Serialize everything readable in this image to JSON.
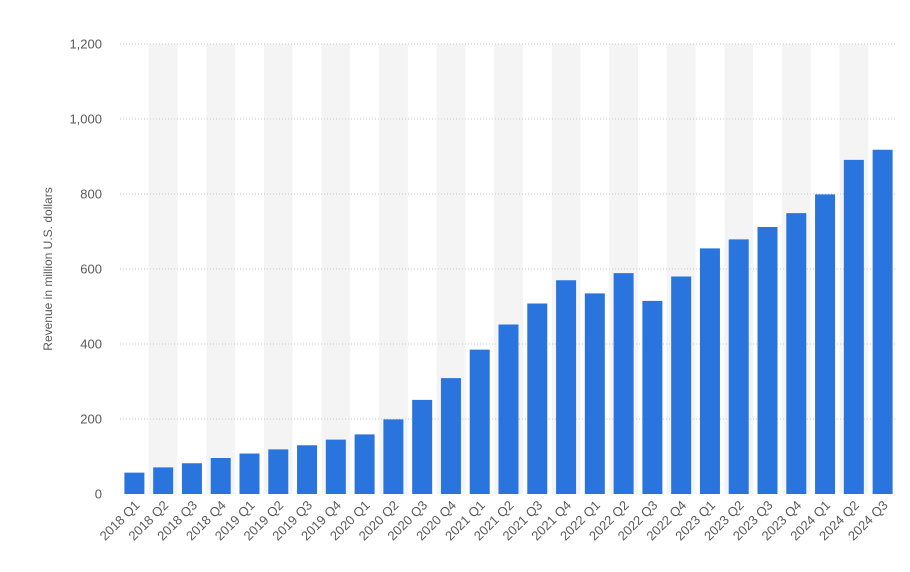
{
  "chart_data": {
    "type": "bar",
    "title": "",
    "xlabel": "",
    "ylabel": "Revenue in million U.S. dollars",
    "ylim": [
      0,
      1200
    ],
    "yticks": [
      0,
      200,
      400,
      600,
      800,
      1000,
      1200
    ],
    "ytick_labels": [
      "0",
      "200",
      "400",
      "600",
      "800",
      "1,000",
      "1,200"
    ],
    "grid": true,
    "legend": "none",
    "bar_color": "#2a74de",
    "band_color": "#f4f4f4",
    "categories": [
      "2018 Q1",
      "2018 Q2",
      "2018 Q3",
      "2018 Q4",
      "2019 Q1",
      "2019 Q2",
      "2019 Q3",
      "2019 Q4",
      "2020 Q1",
      "2020 Q2",
      "2020 Q3",
      "2020 Q4",
      "2021 Q1",
      "2021 Q2",
      "2021 Q3",
      "2021 Q4",
      "2022 Q1",
      "2022 Q2",
      "2022 Q3",
      "2022 Q4",
      "2023 Q1",
      "2023 Q2",
      "2023 Q3",
      "2023 Q4",
      "2024 Q1",
      "2024 Q2",
      "2024 Q3"
    ],
    "values": [
      57,
      71,
      82,
      96,
      108,
      119,
      130,
      145,
      159,
      199,
      251,
      309,
      385,
      452,
      508,
      570,
      535,
      589,
      515,
      580,
      655,
      679,
      712,
      749,
      799,
      891,
      918
    ]
  }
}
